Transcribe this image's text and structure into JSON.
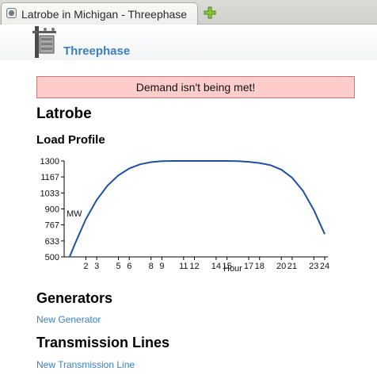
{
  "browser": {
    "tab_title": "Latrobe in Michigan - Threephase",
    "new_tab_icon": "plus-icon"
  },
  "header": {
    "site_title": "Threephase",
    "logo_icon": "power-pole-icon"
  },
  "alert": {
    "message": "Demand isn't being met!",
    "bg_color": "#ffcccc"
  },
  "page": {
    "city": "Latrobe",
    "load_profile_heading": "Load Profile",
    "generators_heading": "Generators",
    "new_generator_link": "New Generator",
    "transmission_heading": "Transmission Lines",
    "new_transmission_link": "New Transmission Line"
  },
  "chart_data": {
    "type": "line",
    "title": "",
    "xlabel": "Hour",
    "ylabel": "MW",
    "xlim": [
      0,
      24
    ],
    "ylim": [
      500,
      1300
    ],
    "x_ticks": [
      2,
      3,
      5,
      6,
      8,
      9,
      11,
      12,
      14,
      15,
      17,
      18,
      20,
      21,
      23,
      24
    ],
    "y_ticks": [
      500,
      633,
      767,
      900,
      1033,
      1167,
      1300
    ],
    "line_color": "#1f4fa0",
    "series": [
      {
        "x": [
          0.5,
          1,
          2,
          3,
          4,
          5,
          6,
          7,
          8,
          9,
          10,
          11,
          12,
          13,
          14,
          15,
          16,
          17,
          18,
          19,
          20,
          21,
          22,
          23,
          24
        ],
        "values": [
          500,
          610,
          815,
          975,
          1095,
          1180,
          1238,
          1272,
          1290,
          1298,
          1300,
          1300,
          1300,
          1300,
          1300,
          1300,
          1298,
          1293,
          1283,
          1265,
          1228,
          1160,
          1050,
          890,
          690
        ]
      }
    ]
  }
}
